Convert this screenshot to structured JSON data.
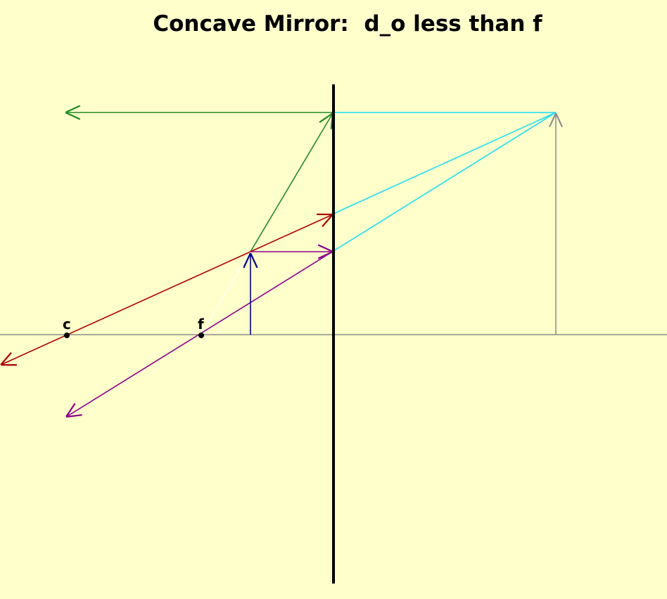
{
  "title": "Concave Mirror:  d_o less than f",
  "labels": {
    "center": "c",
    "focal": "f"
  },
  "colors": {
    "background": "#ffffcc",
    "axis": "#8c8c8c",
    "mirror": "#000000",
    "object": "#00008b",
    "image": "#8c8c8c",
    "ray_parallel": "#228b22",
    "ray_center": "#b00000",
    "ray_focal": "#8b008b",
    "virtual_extension": "#33e0ee",
    "dashed_helper": "#ffffff"
  }
}
